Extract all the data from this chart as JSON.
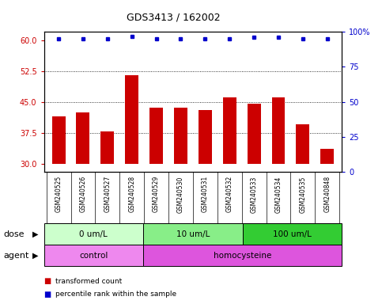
{
  "title": "GDS3413 / 162002",
  "samples": [
    "GSM240525",
    "GSM240526",
    "GSM240527",
    "GSM240528",
    "GSM240529",
    "GSM240530",
    "GSM240531",
    "GSM240532",
    "GSM240533",
    "GSM240534",
    "GSM240535",
    "GSM240848"
  ],
  "bar_values": [
    41.5,
    42.5,
    37.8,
    51.5,
    43.5,
    43.5,
    43.0,
    46.0,
    44.5,
    46.0,
    39.5,
    33.5
  ],
  "percentile_values": [
    95.0,
    95.0,
    95.0,
    97.0,
    95.0,
    95.0,
    95.0,
    95.0,
    96.0,
    96.0,
    95.0,
    95.0
  ],
  "bar_color": "#cc0000",
  "percentile_color": "#0000cc",
  "ylim_left": [
    28,
    62
  ],
  "ylim_right": [
    0,
    100
  ],
  "yticks_left": [
    30,
    37.5,
    45,
    52.5,
    60
  ],
  "yticks_right": [
    0,
    25,
    50,
    75,
    100
  ],
  "dotted_lines": [
    37.5,
    45.0,
    52.5
  ],
  "bar_bottom": 30,
  "dose_groups": [
    {
      "label": "0 um/L",
      "start": 0,
      "end": 3,
      "color": "#ccffcc"
    },
    {
      "label": "10 um/L",
      "start": 4,
      "end": 7,
      "color": "#88ee88"
    },
    {
      "label": "100 um/L",
      "start": 8,
      "end": 11,
      "color": "#33cc33"
    }
  ],
  "agent_groups": [
    {
      "label": "control",
      "start": 0,
      "end": 3,
      "color": "#ee88ee"
    },
    {
      "label": "homocysteine",
      "start": 4,
      "end": 11,
      "color": "#dd55dd"
    }
  ],
  "legend_bar_label": "transformed count",
  "legend_pct_label": "percentile rank within the sample",
  "dose_label": "dose",
  "agent_label": "agent",
  "background_color": "#ffffff",
  "plot_bg_color": "#ffffff",
  "tick_area_color": "#cccccc"
}
